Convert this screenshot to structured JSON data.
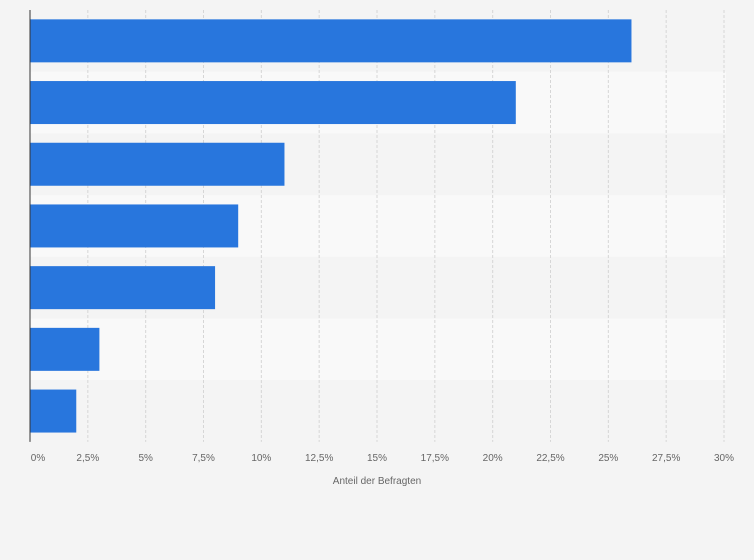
{
  "chart_data": {
    "type": "bar",
    "orientation": "horizontal",
    "title": "",
    "categories": [
      "",
      "",
      "",
      "",
      "",
      "",
      ""
    ],
    "values": [
      26,
      21,
      11,
      9,
      8,
      3,
      2
    ],
    "xlabel": "Anteil der Befragten",
    "ylabel": "",
    "xlim": [
      0,
      30
    ],
    "x_ticks": [
      0,
      2.5,
      5,
      7.5,
      10,
      12.5,
      15,
      17.5,
      20,
      22.5,
      25,
      27.5,
      30
    ],
    "x_tick_labels": [
      "0%",
      "2,5%",
      "5%",
      "7,5%",
      "10%",
      "12,5%",
      "15%",
      "17,5%",
      "20%",
      "22,5%",
      "25%",
      "27,5%",
      "30%"
    ],
    "grid": true,
    "legend": "none",
    "colors": {
      "bar": "#2876dd",
      "band_light": "#f9f9f9",
      "band_dark": "#f4f4f4",
      "grid": "#d6d6d6",
      "axis": "#333333",
      "text": "#666666"
    }
  }
}
